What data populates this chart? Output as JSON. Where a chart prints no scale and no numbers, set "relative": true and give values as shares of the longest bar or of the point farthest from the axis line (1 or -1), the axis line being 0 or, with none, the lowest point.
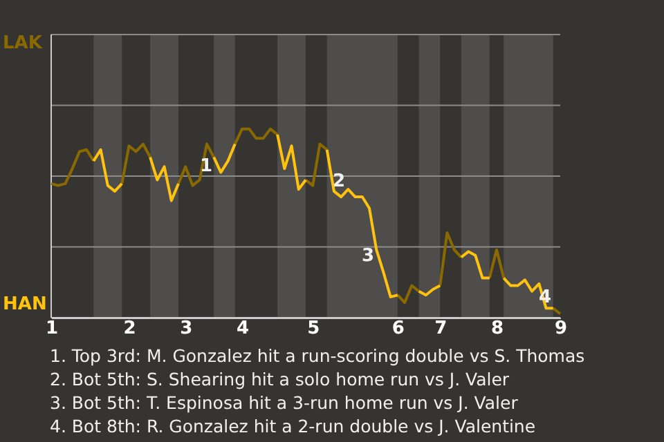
{
  "chart_data": {
    "type": "line",
    "relative": true,
    "categories": [
      "1",
      null,
      null,
      null,
      null,
      null,
      null,
      null,
      null,
      null,
      null,
      "2",
      null,
      null,
      null,
      null,
      null,
      null,
      null,
      "3",
      null,
      null,
      null,
      null,
      null,
      null,
      null,
      "4",
      null,
      null,
      null,
      null,
      null,
      null,
      null,
      null,
      null,
      "5",
      null,
      null,
      null,
      null,
      null,
      null,
      null,
      null,
      null,
      null,
      null,
      "6",
      null,
      null,
      null,
      null,
      null,
      "7",
      null,
      null,
      null,
      null,
      null,
      null,
      null,
      "8",
      null,
      null,
      null,
      null,
      null,
      null,
      null,
      null,
      "9"
    ],
    "marker": "none",
    "line_style": "solid",
    "ref_lines": [
      {
        "axis": "y",
        "value": 0.375,
        "color": "#8c8c8c"
      },
      {
        "axis": "y",
        "value": 0.75,
        "color": "#8c8c8c"
      },
      {
        "axis": "y",
        "value": 1.125,
        "color": "#8c8c8c"
      },
      {
        "axis": "y",
        "value": 1.5,
        "color": "#8c8c8c"
      }
    ],
    "series": [
      {
        "color": "#8a6a00",
        "values": [
          0.71,
          0.7,
          0.71,
          0.79,
          0.88,
          0.89,
          0.83,
          null,
          null,
          null,
          0.71,
          0.91,
          0.88,
          0.92,
          0.85,
          null,
          null,
          null,
          0.71,
          0.8,
          0.7,
          0.73,
          0.92,
          0.85,
          null,
          null,
          0.92,
          1,
          1,
          0.95,
          0.95,
          1,
          0.97,
          null,
          null,
          null,
          0.73,
          0.7,
          0.92,
          0.89,
          null,
          null,
          null,
          null,
          null,
          null,
          null,
          null,
          null,
          0.12,
          0.08,
          0.17,
          0.14,
          null,
          null,
          0.17,
          0.45,
          0.36,
          0.32,
          null,
          null,
          null,
          0.21,
          0.36,
          0.21,
          null,
          null,
          null,
          null,
          null,
          null,
          0.05,
          0.02
        ]
      },
      {
        "color": "#ffc20e",
        "values": [
          null,
          null,
          null,
          null,
          null,
          null,
          0.83,
          0.89,
          0.7,
          0.67,
          0.71,
          null,
          null,
          null,
          0.85,
          0.73,
          0.8,
          0.62,
          0.71,
          null,
          null,
          null,
          null,
          0.85,
          0.77,
          0.83,
          0.92,
          null,
          null,
          null,
          null,
          null,
          0.97,
          0.79,
          0.91,
          0.68,
          0.73,
          null,
          null,
          0.89,
          0.67,
          0.64,
          0.68,
          0.64,
          0.64,
          0.58,
          0.36,
          0.24,
          0.11,
          0.12,
          null,
          null,
          0.14,
          0.12,
          0.15,
          0.17,
          null,
          null,
          0.32,
          0.35,
          0.33,
          0.21,
          0.21,
          null,
          0.21,
          0.17,
          0.17,
          0.2,
          0.14,
          0.18,
          0.05,
          0.05,
          null
        ]
      }
    ],
    "annotations": [
      "LAK",
      "HAN",
      "1",
      "2",
      "3",
      "4",
      "1. Top 3rd: M. Gonzalez hit a run-scoring double vs S. Thomas",
      "2. Bot 5th: S. Shearing hit a solo home run vs J. Valer",
      "3. Bot 5th: T. Espinosa hit a 3-run home run vs J. Valer",
      "4. Bot 8th: R. Gonzalez hit a 2-run double vs J. Valentine"
    ]
  }
}
